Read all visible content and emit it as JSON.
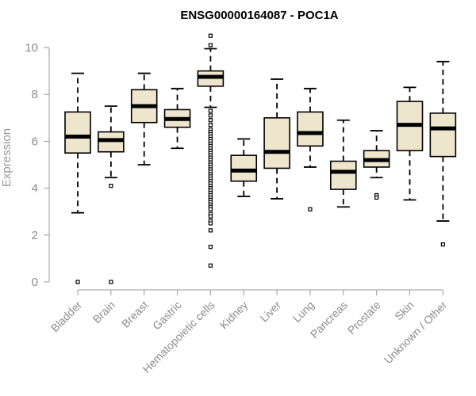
{
  "chart_data": {
    "type": "boxplot",
    "title": "ENSG00000164087 - POC1A",
    "xlabel": "",
    "ylabel": "Expression",
    "ylim": [
      0,
      10
    ],
    "yticks": [
      "0",
      "2",
      "4",
      "6",
      "8",
      "10"
    ],
    "box_fill": "#ede6cd",
    "categories": [
      "Bladder",
      "Brain",
      "Breast",
      "Gastric",
      "Hematopoietic cells",
      "Kidney",
      "Liver",
      "Lung",
      "Pancreas",
      "Prostate",
      "Skin",
      "Unknown / Other"
    ],
    "boxes": [
      {
        "name": "Bladder",
        "whisker_low": 2.95,
        "q1": 5.5,
        "median": 6.2,
        "q3": 7.25,
        "whisker_high": 8.9,
        "outliers": [
          0.0
        ]
      },
      {
        "name": "Brain",
        "whisker_low": 4.45,
        "q1": 5.55,
        "median": 6.05,
        "q3": 6.4,
        "whisker_high": 7.5,
        "outliers": [
          4.1,
          0.0
        ]
      },
      {
        "name": "Breast",
        "whisker_low": 5.0,
        "q1": 6.8,
        "median": 7.5,
        "q3": 8.2,
        "whisker_high": 8.9,
        "outliers": []
      },
      {
        "name": "Gastric",
        "whisker_low": 5.7,
        "q1": 6.6,
        "median": 6.95,
        "q3": 7.35,
        "whisker_high": 8.25,
        "outliers": []
      },
      {
        "name": "Hematopoietic cells",
        "whisker_low": 7.45,
        "q1": 8.35,
        "median": 8.75,
        "q3": 9.0,
        "whisker_high": 9.95,
        "outliers": [
          10.5,
          10.1,
          7.3,
          7.1,
          6.9,
          6.7,
          6.5,
          6.4,
          6.3,
          6.2,
          6.1,
          6.0,
          5.9,
          5.8,
          5.7,
          5.6,
          5.5,
          5.4,
          5.3,
          5.2,
          5.1,
          5.0,
          4.9,
          4.8,
          4.7,
          4.6,
          4.5,
          4.4,
          4.3,
          4.2,
          4.1,
          4.0,
          3.9,
          3.8,
          3.7,
          3.6,
          3.5,
          3.4,
          3.3,
          3.2,
          3.1,
          2.9,
          2.8,
          2.6,
          2.5,
          2.2,
          1.5,
          0.7
        ]
      },
      {
        "name": "Kidney",
        "whisker_low": 3.65,
        "q1": 4.3,
        "median": 4.75,
        "q3": 5.4,
        "whisker_high": 6.1,
        "outliers": []
      },
      {
        "name": "Liver",
        "whisker_low": 3.55,
        "q1": 4.85,
        "median": 5.55,
        "q3": 7.0,
        "whisker_high": 8.65,
        "outliers": []
      },
      {
        "name": "Lung",
        "whisker_low": 4.9,
        "q1": 5.8,
        "median": 6.35,
        "q3": 7.25,
        "whisker_high": 8.25,
        "outliers": [
          3.1
        ]
      },
      {
        "name": "Pancreas",
        "whisker_low": 3.2,
        "q1": 3.95,
        "median": 4.7,
        "q3": 5.15,
        "whisker_high": 6.9,
        "outliers": []
      },
      {
        "name": "Prostate",
        "whisker_low": 4.45,
        "q1": 4.9,
        "median": 5.2,
        "q3": 5.6,
        "whisker_high": 6.45,
        "outliers": [
          3.7,
          3.6
        ]
      },
      {
        "name": "Skin",
        "whisker_low": 3.5,
        "q1": 5.6,
        "median": 6.7,
        "q3": 7.7,
        "whisker_high": 8.3,
        "outliers": []
      },
      {
        "name": "Unknown / Other",
        "whisker_low": 2.6,
        "q1": 5.35,
        "median": 6.55,
        "q3": 7.2,
        "whisker_high": 9.4,
        "outliers": [
          1.6
        ]
      }
    ]
  }
}
